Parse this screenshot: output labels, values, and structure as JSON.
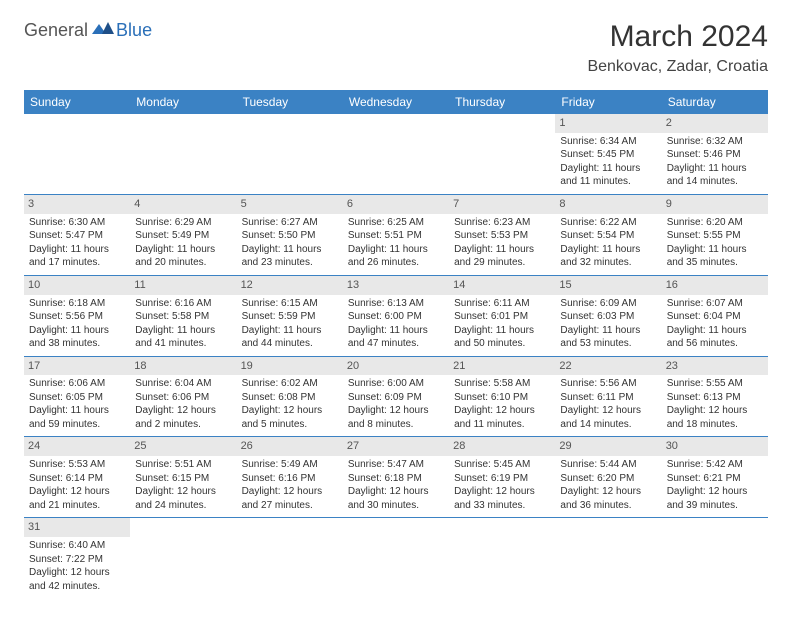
{
  "brand": {
    "part1": "General",
    "part2": "Blue"
  },
  "title": "March 2024",
  "location": "Benkovac, Zadar, Croatia",
  "colors": {
    "header_bg": "#3b82c4",
    "header_fg": "#ffffff",
    "daynum_bg": "#e8e8e8",
    "row_border": "#3b82c4",
    "brand_blue": "#2a6fb8"
  },
  "weekdays": [
    "Sunday",
    "Monday",
    "Tuesday",
    "Wednesday",
    "Thursday",
    "Friday",
    "Saturday"
  ],
  "cells": [
    {
      "day": "",
      "sunrise": "",
      "sunset": "",
      "daylight": ""
    },
    {
      "day": "",
      "sunrise": "",
      "sunset": "",
      "daylight": ""
    },
    {
      "day": "",
      "sunrise": "",
      "sunset": "",
      "daylight": ""
    },
    {
      "day": "",
      "sunrise": "",
      "sunset": "",
      "daylight": ""
    },
    {
      "day": "",
      "sunrise": "",
      "sunset": "",
      "daylight": ""
    },
    {
      "day": "1",
      "sunrise": "Sunrise: 6:34 AM",
      "sunset": "Sunset: 5:45 PM",
      "daylight": "Daylight: 11 hours and 11 minutes."
    },
    {
      "day": "2",
      "sunrise": "Sunrise: 6:32 AM",
      "sunset": "Sunset: 5:46 PM",
      "daylight": "Daylight: 11 hours and 14 minutes."
    },
    {
      "day": "3",
      "sunrise": "Sunrise: 6:30 AM",
      "sunset": "Sunset: 5:47 PM",
      "daylight": "Daylight: 11 hours and 17 minutes."
    },
    {
      "day": "4",
      "sunrise": "Sunrise: 6:29 AM",
      "sunset": "Sunset: 5:49 PM",
      "daylight": "Daylight: 11 hours and 20 minutes."
    },
    {
      "day": "5",
      "sunrise": "Sunrise: 6:27 AM",
      "sunset": "Sunset: 5:50 PM",
      "daylight": "Daylight: 11 hours and 23 minutes."
    },
    {
      "day": "6",
      "sunrise": "Sunrise: 6:25 AM",
      "sunset": "Sunset: 5:51 PM",
      "daylight": "Daylight: 11 hours and 26 minutes."
    },
    {
      "day": "7",
      "sunrise": "Sunrise: 6:23 AM",
      "sunset": "Sunset: 5:53 PM",
      "daylight": "Daylight: 11 hours and 29 minutes."
    },
    {
      "day": "8",
      "sunrise": "Sunrise: 6:22 AM",
      "sunset": "Sunset: 5:54 PM",
      "daylight": "Daylight: 11 hours and 32 minutes."
    },
    {
      "day": "9",
      "sunrise": "Sunrise: 6:20 AM",
      "sunset": "Sunset: 5:55 PM",
      "daylight": "Daylight: 11 hours and 35 minutes."
    },
    {
      "day": "10",
      "sunrise": "Sunrise: 6:18 AM",
      "sunset": "Sunset: 5:56 PM",
      "daylight": "Daylight: 11 hours and 38 minutes."
    },
    {
      "day": "11",
      "sunrise": "Sunrise: 6:16 AM",
      "sunset": "Sunset: 5:58 PM",
      "daylight": "Daylight: 11 hours and 41 minutes."
    },
    {
      "day": "12",
      "sunrise": "Sunrise: 6:15 AM",
      "sunset": "Sunset: 5:59 PM",
      "daylight": "Daylight: 11 hours and 44 minutes."
    },
    {
      "day": "13",
      "sunrise": "Sunrise: 6:13 AM",
      "sunset": "Sunset: 6:00 PM",
      "daylight": "Daylight: 11 hours and 47 minutes."
    },
    {
      "day": "14",
      "sunrise": "Sunrise: 6:11 AM",
      "sunset": "Sunset: 6:01 PM",
      "daylight": "Daylight: 11 hours and 50 minutes."
    },
    {
      "day": "15",
      "sunrise": "Sunrise: 6:09 AM",
      "sunset": "Sunset: 6:03 PM",
      "daylight": "Daylight: 11 hours and 53 minutes."
    },
    {
      "day": "16",
      "sunrise": "Sunrise: 6:07 AM",
      "sunset": "Sunset: 6:04 PM",
      "daylight": "Daylight: 11 hours and 56 minutes."
    },
    {
      "day": "17",
      "sunrise": "Sunrise: 6:06 AM",
      "sunset": "Sunset: 6:05 PM",
      "daylight": "Daylight: 11 hours and 59 minutes."
    },
    {
      "day": "18",
      "sunrise": "Sunrise: 6:04 AM",
      "sunset": "Sunset: 6:06 PM",
      "daylight": "Daylight: 12 hours and 2 minutes."
    },
    {
      "day": "19",
      "sunrise": "Sunrise: 6:02 AM",
      "sunset": "Sunset: 6:08 PM",
      "daylight": "Daylight: 12 hours and 5 minutes."
    },
    {
      "day": "20",
      "sunrise": "Sunrise: 6:00 AM",
      "sunset": "Sunset: 6:09 PM",
      "daylight": "Daylight: 12 hours and 8 minutes."
    },
    {
      "day": "21",
      "sunrise": "Sunrise: 5:58 AM",
      "sunset": "Sunset: 6:10 PM",
      "daylight": "Daylight: 12 hours and 11 minutes."
    },
    {
      "day": "22",
      "sunrise": "Sunrise: 5:56 AM",
      "sunset": "Sunset: 6:11 PM",
      "daylight": "Daylight: 12 hours and 14 minutes."
    },
    {
      "day": "23",
      "sunrise": "Sunrise: 5:55 AM",
      "sunset": "Sunset: 6:13 PM",
      "daylight": "Daylight: 12 hours and 18 minutes."
    },
    {
      "day": "24",
      "sunrise": "Sunrise: 5:53 AM",
      "sunset": "Sunset: 6:14 PM",
      "daylight": "Daylight: 12 hours and 21 minutes."
    },
    {
      "day": "25",
      "sunrise": "Sunrise: 5:51 AM",
      "sunset": "Sunset: 6:15 PM",
      "daylight": "Daylight: 12 hours and 24 minutes."
    },
    {
      "day": "26",
      "sunrise": "Sunrise: 5:49 AM",
      "sunset": "Sunset: 6:16 PM",
      "daylight": "Daylight: 12 hours and 27 minutes."
    },
    {
      "day": "27",
      "sunrise": "Sunrise: 5:47 AM",
      "sunset": "Sunset: 6:18 PM",
      "daylight": "Daylight: 12 hours and 30 minutes."
    },
    {
      "day": "28",
      "sunrise": "Sunrise: 5:45 AM",
      "sunset": "Sunset: 6:19 PM",
      "daylight": "Daylight: 12 hours and 33 minutes."
    },
    {
      "day": "29",
      "sunrise": "Sunrise: 5:44 AM",
      "sunset": "Sunset: 6:20 PM",
      "daylight": "Daylight: 12 hours and 36 minutes."
    },
    {
      "day": "30",
      "sunrise": "Sunrise: 5:42 AM",
      "sunset": "Sunset: 6:21 PM",
      "daylight": "Daylight: 12 hours and 39 minutes."
    },
    {
      "day": "31",
      "sunrise": "Sunrise: 6:40 AM",
      "sunset": "Sunset: 7:22 PM",
      "daylight": "Daylight: 12 hours and 42 minutes."
    },
    {
      "day": "",
      "sunrise": "",
      "sunset": "",
      "daylight": ""
    },
    {
      "day": "",
      "sunrise": "",
      "sunset": "",
      "daylight": ""
    },
    {
      "day": "",
      "sunrise": "",
      "sunset": "",
      "daylight": ""
    },
    {
      "day": "",
      "sunrise": "",
      "sunset": "",
      "daylight": ""
    },
    {
      "day": "",
      "sunrise": "",
      "sunset": "",
      "daylight": ""
    },
    {
      "day": "",
      "sunrise": "",
      "sunset": "",
      "daylight": ""
    }
  ]
}
